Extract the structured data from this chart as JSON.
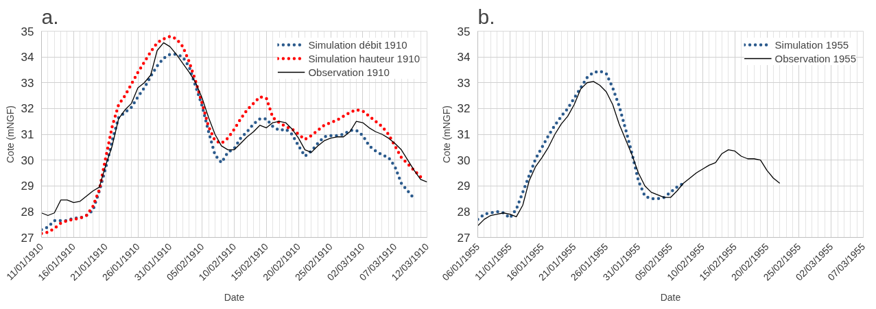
{
  "chart_data": [
    {
      "type": "line",
      "title": "a.",
      "xlabel": "Date",
      "ylabel": "Cote (mNGF)",
      "xlim": [
        "1910-01-11",
        "1910-03-12"
      ],
      "ylim": [
        27,
        35
      ],
      "yticks": [
        27,
        28,
        29,
        30,
        31,
        32,
        33,
        34,
        35
      ],
      "xticks": [
        {
          "value": "1910-01-11",
          "label": "11/01/1910"
        },
        {
          "value": "1910-01-16",
          "label": "16/01/1910"
        },
        {
          "value": "1910-01-21",
          "label": "21/01/1910"
        },
        {
          "value": "1910-01-26",
          "label": "26/01/1910"
        },
        {
          "value": "1910-01-31",
          "label": "31/01/1910"
        },
        {
          "value": "1910-02-05",
          "label": "05/02/1910"
        },
        {
          "value": "1910-02-10",
          "label": "10/02/1910"
        },
        {
          "value": "1910-02-15",
          "label": "15/02/1910"
        },
        {
          "value": "1910-02-20",
          "label": "20/02/1910"
        },
        {
          "value": "1910-02-25",
          "label": "25/02/1910"
        },
        {
          "value": "1910-03-02",
          "label": "02/03/1910"
        },
        {
          "value": "1910-03-07",
          "label": "07/03/1910"
        },
        {
          "value": "1910-03-12",
          "label": "12/03/1910"
        }
      ],
      "grid": true,
      "legend": "top right",
      "x": [
        "1910-01-11",
        "1910-01-12",
        "1910-01-13",
        "1910-01-14",
        "1910-01-15",
        "1910-01-16",
        "1910-01-17",
        "1910-01-18",
        "1910-01-19",
        "1910-01-20",
        "1910-01-21",
        "1910-01-22",
        "1910-01-23",
        "1910-01-24",
        "1910-01-25",
        "1910-01-26",
        "1910-01-27",
        "1910-01-28",
        "1910-01-29",
        "1910-01-30",
        "1910-01-31",
        "1910-02-01",
        "1910-02-02",
        "1910-02-03",
        "1910-02-04",
        "1910-02-05",
        "1910-02-06",
        "1910-02-07",
        "1910-02-08",
        "1910-02-09",
        "1910-02-10",
        "1910-02-11",
        "1910-02-12",
        "1910-02-13",
        "1910-02-14",
        "1910-02-15",
        "1910-02-16",
        "1910-02-17",
        "1910-02-18",
        "1910-02-19",
        "1910-02-20",
        "1910-02-21",
        "1910-02-22",
        "1910-02-23",
        "1910-02-24",
        "1910-02-25",
        "1910-02-26",
        "1910-02-27",
        "1910-02-28",
        "1910-03-01",
        "1910-03-02",
        "1910-03-03",
        "1910-03-04",
        "1910-03-05",
        "1910-03-06",
        "1910-03-07",
        "1910-03-08",
        "1910-03-09",
        "1910-03-10",
        "1910-03-11",
        "1910-03-12"
      ],
      "series": [
        {
          "name": "Simulation débit 1910",
          "color": "#2b5a8c",
          "line_style": "dotted",
          "values": [
            27.3,
            27.4,
            27.65,
            27.65,
            27.65,
            27.75,
            27.75,
            27.85,
            28.05,
            28.8,
            29.7,
            30.75,
            31.65,
            31.85,
            32.05,
            32.45,
            32.8,
            33.25,
            33.65,
            33.95,
            34.1,
            34.1,
            34.0,
            33.6,
            32.85,
            32.1,
            31.1,
            30.2,
            29.9,
            30.3,
            30.45,
            30.85,
            31.1,
            31.4,
            31.6,
            31.6,
            31.3,
            31.15,
            31.2,
            31.0,
            30.55,
            30.15,
            30.35,
            30.65,
            30.9,
            30.95,
            30.95,
            31.0,
            31.15,
            31.15,
            30.95,
            30.55,
            30.35,
            30.2,
            30.1,
            29.75,
            29.1,
            28.8,
            28.5,
            null,
            null
          ]
        },
        {
          "name": "Simulation hauteur 1910",
          "color": "#ff0000",
          "line_style": "dotted",
          "values": [
            27.15,
            27.2,
            27.35,
            27.55,
            27.65,
            27.7,
            27.75,
            27.85,
            28.2,
            28.85,
            30.1,
            31.3,
            32.15,
            32.5,
            32.95,
            33.4,
            33.8,
            34.2,
            34.55,
            34.7,
            34.8,
            34.7,
            34.4,
            33.8,
            33.05,
            32.2,
            31.3,
            30.75,
            30.65,
            30.85,
            31.2,
            31.6,
            31.95,
            32.2,
            32.45,
            32.4,
            31.65,
            31.45,
            31.3,
            31.2,
            31.0,
            30.8,
            30.95,
            31.15,
            31.35,
            31.45,
            31.55,
            31.7,
            31.85,
            31.95,
            31.9,
            31.7,
            31.5,
            31.3,
            31.0,
            30.55,
            30.1,
            29.85,
            29.6,
            29.35,
            null
          ]
        },
        {
          "name": "Observation 1910",
          "color": "#000000",
          "line_style": "solid",
          "values": [
            27.95,
            27.85,
            27.95,
            28.45,
            28.45,
            28.35,
            28.4,
            28.6,
            28.8,
            28.95,
            29.8,
            30.55,
            31.6,
            31.95,
            32.2,
            32.8,
            33.0,
            33.3,
            34.25,
            34.55,
            34.4,
            34.1,
            33.75,
            33.4,
            33.0,
            32.4,
            31.65,
            31.0,
            30.55,
            30.4,
            30.4,
            30.65,
            30.9,
            31.1,
            31.35,
            31.25,
            31.45,
            31.5,
            31.45,
            31.2,
            30.85,
            30.4,
            30.3,
            30.55,
            30.75,
            30.85,
            30.9,
            30.9,
            31.1,
            31.5,
            31.45,
            31.25,
            31.1,
            31.0,
            30.85,
            30.65,
            30.4,
            30.0,
            29.6,
            29.25,
            29.15
          ]
        }
      ]
    },
    {
      "type": "line",
      "title": "b.",
      "xlabel": "Date",
      "ylabel": "Cote (mNGF)",
      "xlim": [
        "1955-01-06",
        "1955-03-07"
      ],
      "ylim": [
        27,
        35
      ],
      "yticks": [
        27,
        28,
        29,
        30,
        31,
        32,
        33,
        34,
        35
      ],
      "xticks": [
        {
          "value": "1955-01-06",
          "label": "06/01/1955"
        },
        {
          "value": "1955-01-11",
          "label": "11/01/1955"
        },
        {
          "value": "1955-01-16",
          "label": "16/01/1955"
        },
        {
          "value": "1955-01-21",
          "label": "21/01/1955"
        },
        {
          "value": "1955-01-26",
          "label": "26/01/1955"
        },
        {
          "value": "1955-01-31",
          "label": "31/01/1955"
        },
        {
          "value": "1955-02-05",
          "label": "05/02/1955"
        },
        {
          "value": "1955-02-10",
          "label": "10/02/1955"
        },
        {
          "value": "1955-02-15",
          "label": "15/02/1955"
        },
        {
          "value": "1955-02-20",
          "label": "20/02/1955"
        },
        {
          "value": "1955-02-25",
          "label": "25/02/1955"
        },
        {
          "value": "1955-03-02",
          "label": "02/03/1955"
        },
        {
          "value": "1955-03-07",
          "label": "07/03/1955"
        }
      ],
      "grid": true,
      "legend": "top right",
      "x": [
        "1955-01-06",
        "1955-01-07",
        "1955-01-08",
        "1955-01-09",
        "1955-01-10",
        "1955-01-11",
        "1955-01-12",
        "1955-01-13",
        "1955-01-14",
        "1955-01-15",
        "1955-01-16",
        "1955-01-17",
        "1955-01-18",
        "1955-01-19",
        "1955-01-20",
        "1955-01-21",
        "1955-01-22",
        "1955-01-23",
        "1955-01-24",
        "1955-01-25",
        "1955-01-26",
        "1955-01-27",
        "1955-01-28",
        "1955-01-29",
        "1955-01-30",
        "1955-01-31",
        "1955-02-01",
        "1955-02-02",
        "1955-02-03",
        "1955-02-04",
        "1955-02-05",
        "1955-02-06",
        "1955-02-07",
        "1955-02-08",
        "1955-02-09",
        "1955-02-10",
        "1955-02-11",
        "1955-02-12",
        "1955-02-13",
        "1955-02-14",
        "1955-02-15",
        "1955-02-16",
        "1955-02-17",
        "1955-02-18",
        "1955-02-19",
        "1955-02-20",
        "1955-02-21",
        "1955-02-22"
      ],
      "series": [
        {
          "name": "Simulation 1955",
          "color": "#2b5a8c",
          "line_style": "dotted",
          "values": [
            27.7,
            27.9,
            27.95,
            28.0,
            27.95,
            27.75,
            28.1,
            28.75,
            29.4,
            30.05,
            30.5,
            30.95,
            31.35,
            31.7,
            32.0,
            32.4,
            32.8,
            33.2,
            33.4,
            33.45,
            33.35,
            32.8,
            32.1,
            31.2,
            30.25,
            29.2,
            28.6,
            28.5,
            28.5,
            28.55,
            28.75,
            28.95,
            29.1,
            null,
            null,
            null,
            null,
            null,
            null,
            null,
            null,
            null,
            null,
            null,
            null,
            null,
            null,
            null
          ]
        },
        {
          "name": "Observation 1955",
          "color": "#000000",
          "line_style": "solid",
          "values": [
            27.45,
            27.7,
            27.85,
            27.9,
            27.95,
            27.9,
            27.8,
            28.25,
            29.2,
            29.75,
            30.1,
            30.5,
            31.0,
            31.4,
            31.7,
            32.15,
            32.75,
            33.0,
            33.05,
            32.9,
            32.65,
            32.15,
            31.4,
            30.8,
            30.2,
            29.5,
            29.0,
            28.75,
            28.65,
            28.55,
            28.55,
            28.8,
            29.1,
            29.3,
            29.5,
            29.65,
            29.8,
            29.9,
            30.25,
            30.4,
            30.35,
            30.15,
            30.05,
            30.05,
            30.0,
            29.6,
            29.3,
            29.1
          ]
        }
      ]
    }
  ]
}
